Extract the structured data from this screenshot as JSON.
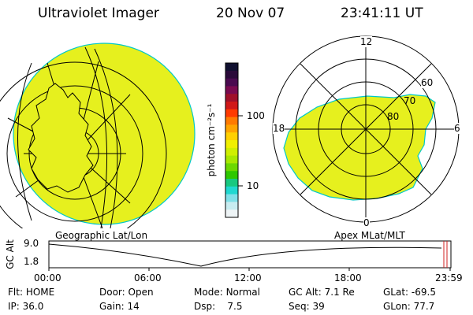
{
  "header": {
    "title": "Ultraviolet Imager",
    "date": "20 Nov 07",
    "time": "23:41:11 UT"
  },
  "colorbar": {
    "unit_label": "photon cm⁻²s⁻¹",
    "ticks": [
      "100",
      "10"
    ],
    "colors": [
      "#101030",
      "#2a0a3a",
      "#4a0a50",
      "#7a0a50",
      "#a0102a",
      "#d01818",
      "#ff3a00",
      "#ff7a00",
      "#ffa400",
      "#ffd000",
      "#f0f000",
      "#cfef00",
      "#a8e800",
      "#6cd800",
      "#2ec800",
      "#18c880",
      "#20d8d0",
      "#80e0e8",
      "#c8ecf0",
      "#eef4f6"
    ]
  },
  "left_panel": {
    "caption": "Geographic Lat/Lon",
    "fill_color": "#e6f01e"
  },
  "right_panel": {
    "caption": "Apex MLat/MLT",
    "mlt_labels": {
      "top": "12",
      "left": "18",
      "right": "6",
      "bottom": "0"
    },
    "lat_labels": [
      "60",
      "70",
      "80"
    ],
    "fill_color": "#e6f01e"
  },
  "altitude_plot": {
    "ylabel": "GC Alt",
    "y_ticks": [
      "9.0",
      "1.8"
    ],
    "x_ticks": [
      "00:00",
      "06:00",
      "12:00",
      "18:00",
      "23:59"
    ],
    "marker_color": "#d02020"
  },
  "status": {
    "flt_label": "Flt:",
    "flt_value": "HOME",
    "ip_label": "IP:",
    "ip_value": "36.0",
    "door_label": "Door:",
    "door_value": "Open",
    "gain_label": "Gain:",
    "gain_value": "14",
    "mode_label": "Mode:",
    "mode_value": "Normal",
    "dsp_label": "Dsp:",
    "dsp_value": "7.5",
    "gcalt_label": "GC Alt:",
    "gcalt_value": "7.1 Re",
    "seq_label": "Seq:",
    "seq_value": "39",
    "glat_label": "GLat:",
    "glat_value": "-69.5",
    "glon_label": "GLon:",
    "glon_value": "77.7"
  }
}
